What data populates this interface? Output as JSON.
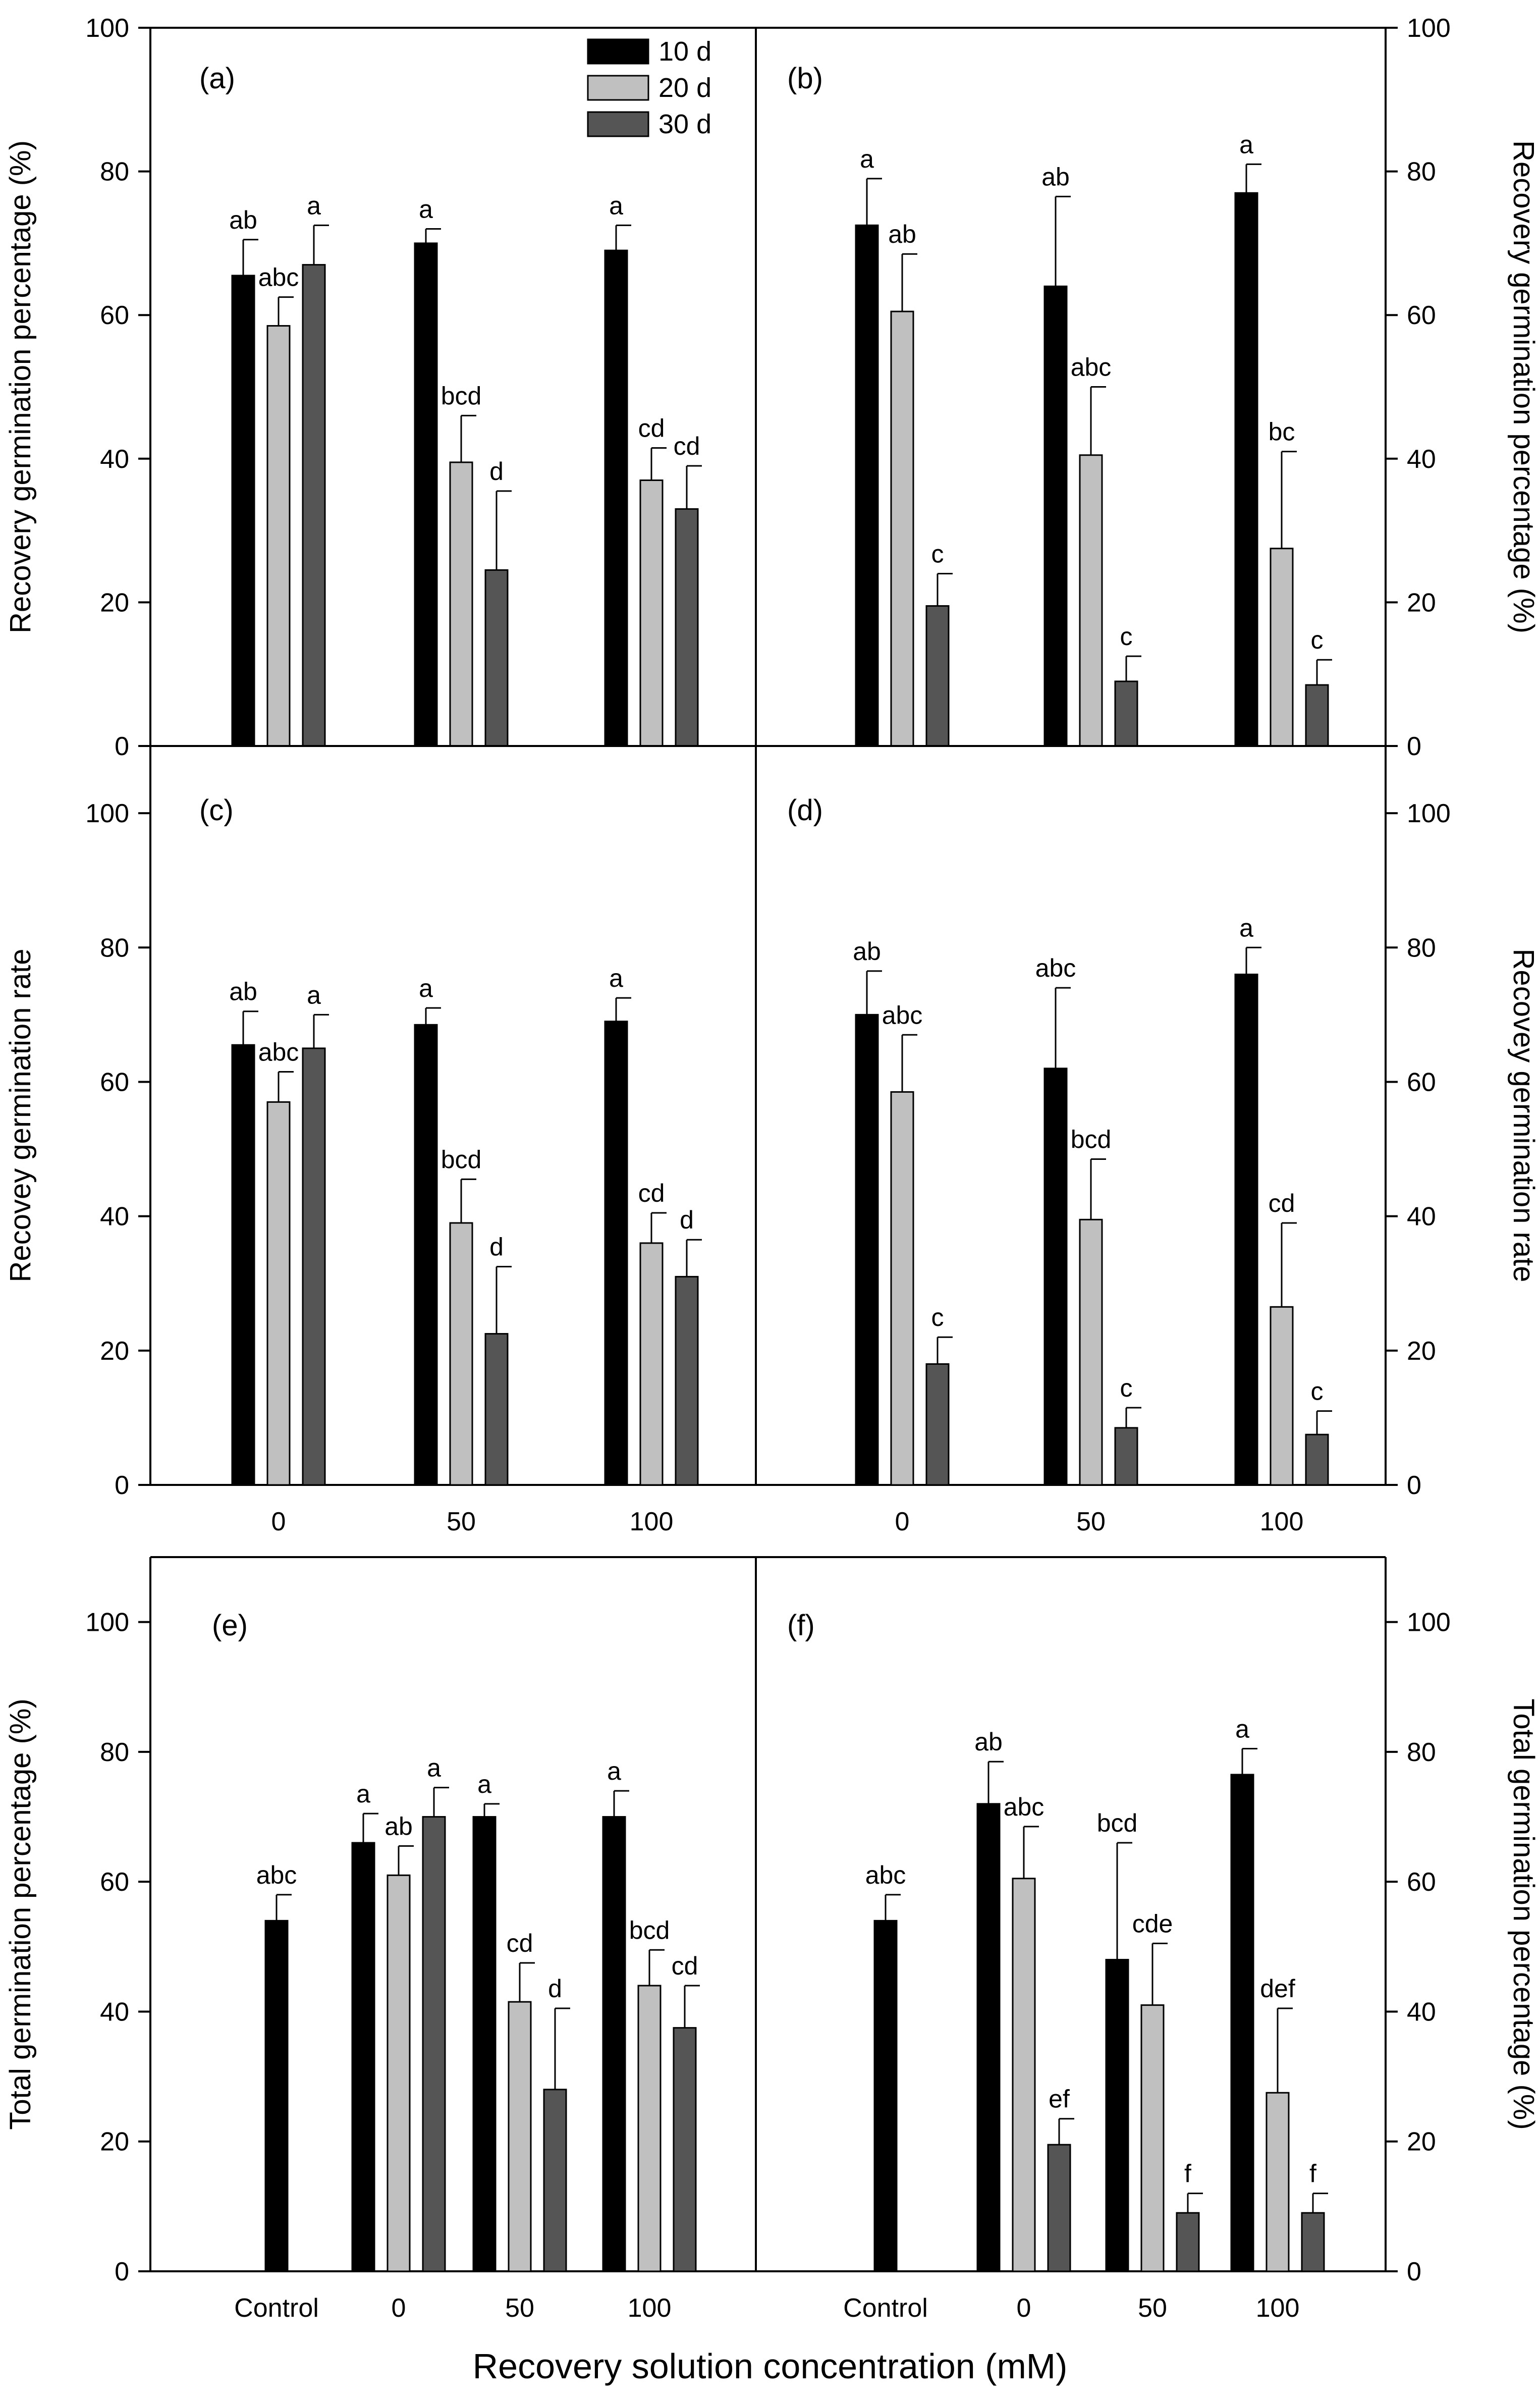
{
  "figure": {
    "xlabel_shared": "Recovery solution concentration (mM)",
    "legend": [
      {
        "label": "10 d",
        "color": "#000000"
      },
      {
        "label": "20 d",
        "color": "#c0c0c0"
      },
      {
        "label": "30 d",
        "color": "#555555"
      }
    ],
    "colors": {
      "d10": "#000000",
      "d20": "#c0c0c0",
      "d30": "#555555",
      "axis": "#000000"
    }
  },
  "chart_data": [
    {
      "panel": "(a)",
      "type": "bar",
      "ylabel": "Recovery germination percentage (%)",
      "ylim": [
        0,
        100
      ],
      "yticks": [
        0,
        20,
        40,
        60,
        80,
        100
      ],
      "xticks_shown": false,
      "categories": [
        "0",
        "50",
        "100"
      ],
      "series": [
        {
          "name": "10 d",
          "values": [
            65.5,
            70.0,
            69.0
          ],
          "errors": [
            5.0,
            2.0,
            3.5
          ],
          "letters": [
            "ab",
            "a",
            "a"
          ]
        },
        {
          "name": "20 d",
          "values": [
            58.5,
            39.5,
            37.0
          ],
          "errors": [
            4.0,
            6.5,
            4.5
          ],
          "letters": [
            "abc",
            "bcd",
            "cd"
          ]
        },
        {
          "name": "30 d",
          "values": [
            67.0,
            24.5,
            33.0
          ],
          "errors": [
            5.5,
            11.0,
            6.0
          ],
          "letters": [
            "a",
            "d",
            "cd"
          ]
        }
      ]
    },
    {
      "panel": "(b)",
      "type": "bar",
      "ylabel": "Recovery germination percentage (%)",
      "ylim": [
        0,
        100
      ],
      "yticks": [
        0,
        20,
        40,
        60,
        80,
        100
      ],
      "xticks_shown": false,
      "categories": [
        "0",
        "50",
        "100"
      ],
      "series": [
        {
          "name": "10 d",
          "values": [
            72.5,
            64.0,
            77.0
          ],
          "errors": [
            6.5,
            12.5,
            4.0
          ],
          "letters": [
            "a",
            "ab",
            "a"
          ]
        },
        {
          "name": "20 d",
          "values": [
            60.5,
            40.5,
            27.5
          ],
          "errors": [
            8.0,
            9.5,
            13.5
          ],
          "letters": [
            "ab",
            "abc",
            "bc"
          ]
        },
        {
          "name": "30 d",
          "values": [
            19.5,
            9.0,
            8.5
          ],
          "errors": [
            4.5,
            3.5,
            3.5
          ],
          "letters": [
            "c",
            "c",
            "c"
          ]
        }
      ]
    },
    {
      "panel": "(c)",
      "type": "bar",
      "ylabel": "Recovey germination rate",
      "ylim": [
        0,
        110
      ],
      "yticks": [
        0,
        20,
        40,
        60,
        80,
        100
      ],
      "xticks_shown": true,
      "categories": [
        "0",
        "50",
        "100"
      ],
      "series": [
        {
          "name": "10 d",
          "values": [
            65.5,
            68.5,
            69.0
          ],
          "errors": [
            5.0,
            2.5,
            3.5
          ],
          "letters": [
            "ab",
            "a",
            "a"
          ]
        },
        {
          "name": "20 d",
          "values": [
            57.0,
            39.0,
            36.0
          ],
          "errors": [
            4.5,
            6.5,
            4.5
          ],
          "letters": [
            "abc",
            "bcd",
            "cd"
          ]
        },
        {
          "name": "30 d",
          "values": [
            65.0,
            22.5,
            31.0
          ],
          "errors": [
            5.0,
            10.0,
            5.5
          ],
          "letters": [
            "a",
            "d",
            "d"
          ]
        }
      ]
    },
    {
      "panel": "(d)",
      "type": "bar",
      "ylabel": "Recovey germination rate",
      "ylim": [
        0,
        110
      ],
      "yticks": [
        0,
        20,
        40,
        60,
        80,
        100
      ],
      "xticks_shown": true,
      "categories": [
        "0",
        "50",
        "100"
      ],
      "series": [
        {
          "name": "10 d",
          "values": [
            70.0,
            62.0,
            76.0
          ],
          "errors": [
            6.5,
            12.0,
            4.0
          ],
          "letters": [
            "ab",
            "abc",
            "a"
          ]
        },
        {
          "name": "20 d",
          "values": [
            58.5,
            39.5,
            26.5
          ],
          "errors": [
            8.5,
            9.0,
            12.5
          ],
          "letters": [
            "abc",
            "bcd",
            "cd"
          ]
        },
        {
          "name": "30 d",
          "values": [
            18.0,
            8.5,
            7.5
          ],
          "errors": [
            4.0,
            3.0,
            3.5
          ],
          "letters": [
            "c",
            "c",
            "c"
          ]
        }
      ]
    },
    {
      "panel": "(e)",
      "type": "bar",
      "ylabel": "Total germination percentage (%)",
      "ylim": [
        0,
        110
      ],
      "yticks": [
        0,
        20,
        40,
        60,
        80,
        100
      ],
      "xticks_shown": true,
      "categories": [
        "Control",
        "0",
        "50",
        "100"
      ],
      "series": [
        {
          "name": "10 d",
          "values": [
            54.0,
            66.0,
            70.0,
            70.0
          ],
          "errors": [
            4.0,
            4.5,
            2.0,
            4.0
          ],
          "letters": [
            "abc",
            "a",
            "a",
            "a"
          ]
        },
        {
          "name": "20 d",
          "values": [
            null,
            61.0,
            41.5,
            44.0
          ],
          "errors": [
            null,
            4.5,
            6.0,
            5.5
          ],
          "letters": [
            "",
            "ab",
            "cd",
            "bcd"
          ]
        },
        {
          "name": "30 d",
          "values": [
            null,
            70.0,
            28.0,
            37.5
          ],
          "errors": [
            null,
            4.5,
            12.5,
            6.5
          ],
          "letters": [
            "",
            "a",
            "d",
            "cd"
          ]
        }
      ]
    },
    {
      "panel": "(f)",
      "type": "bar",
      "ylabel": "Total germination percentage (%)",
      "ylim": [
        0,
        110
      ],
      "yticks": [
        0,
        20,
        40,
        60,
        80,
        100
      ],
      "xticks_shown": true,
      "categories": [
        "Control",
        "0",
        "50",
        "100"
      ],
      "series": [
        {
          "name": "10 d",
          "values": [
            54.0,
            72.0,
            48.0,
            76.5
          ],
          "errors": [
            4.0,
            6.5,
            18.0,
            4.0
          ],
          "letters": [
            "abc",
            "ab",
            "bcd",
            "a"
          ]
        },
        {
          "name": "20 d",
          "values": [
            null,
            60.5,
            41.0,
            27.5
          ],
          "errors": [
            null,
            8.0,
            9.5,
            13.0
          ],
          "letters": [
            "",
            "abc",
            "cde",
            "def"
          ]
        },
        {
          "name": "30 d",
          "values": [
            null,
            19.5,
            9.0,
            9.0
          ],
          "errors": [
            null,
            4.0,
            3.0,
            3.0
          ],
          "letters": [
            "",
            "ef",
            "f",
            "f"
          ]
        }
      ]
    }
  ]
}
